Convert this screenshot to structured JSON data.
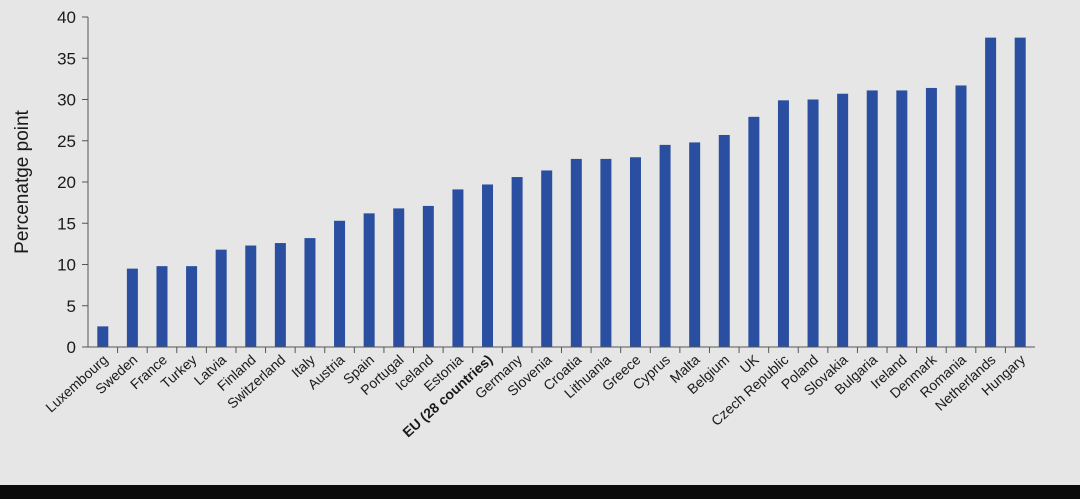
{
  "chart_data": {
    "type": "bar",
    "ylabel": "Percenatge point",
    "xlabel": "",
    "title": "",
    "ylim": [
      0,
      40
    ],
    "yticks": [
      0,
      5,
      10,
      15,
      20,
      25,
      30,
      35,
      40
    ],
    "bar_color": "#2a4fa0",
    "highlight_category": "EU (28 countries)",
    "categories": [
      "Luxembourg",
      "Sweden",
      "France",
      "Turkey",
      "Latvia",
      "Finland",
      "Switzerland",
      "Italy",
      "Austria",
      "Spain",
      "Portugal",
      "Iceland",
      "Estonia",
      "EU (28 countries)",
      "Germany",
      "Slovenia",
      "Croatia",
      "Lithuania",
      "Greece",
      "Cyprus",
      "Malta",
      "Belgium",
      "UK",
      "Czech Republic",
      "Poland",
      "Slovakia",
      "Bulgaria",
      "Ireland",
      "Denmark",
      "Romania",
      "Netherlands",
      "Hungary"
    ],
    "values": [
      2.5,
      9.5,
      9.8,
      9.8,
      11.8,
      12.3,
      12.6,
      13.2,
      15.3,
      16.2,
      16.8,
      17.1,
      19.1,
      19.7,
      20.6,
      21.4,
      22.8,
      22.8,
      23.0,
      24.5,
      24.8,
      25.7,
      27.9,
      29.9,
      30.0,
      30.7,
      31.1,
      31.1,
      31.4,
      31.7,
      37.5,
      37.5
    ]
  }
}
